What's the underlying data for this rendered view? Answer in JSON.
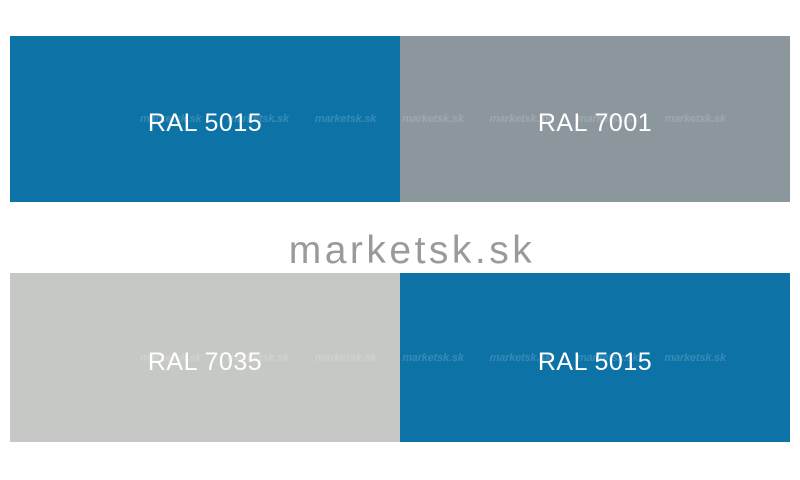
{
  "page": {
    "background": "#ffffff",
    "title_text": "marketsk.sk",
    "title_color": "#9a9a9a"
  },
  "watermark": {
    "text": "marketsk.sk",
    "color": "rgba(255,255,255,0.17)"
  },
  "label_color": "#ffffff",
  "swatches": {
    "top_left": {
      "label": "RAL 5015",
      "color": "#0d73a7"
    },
    "top_right": {
      "label": "RAL 7001",
      "color": "#8c969d"
    },
    "bottom_left": {
      "label": "RAL 7035",
      "color": "#c6c8c5"
    },
    "bottom_right": {
      "label": "RAL 5015",
      "color": "#0d73a7"
    }
  }
}
